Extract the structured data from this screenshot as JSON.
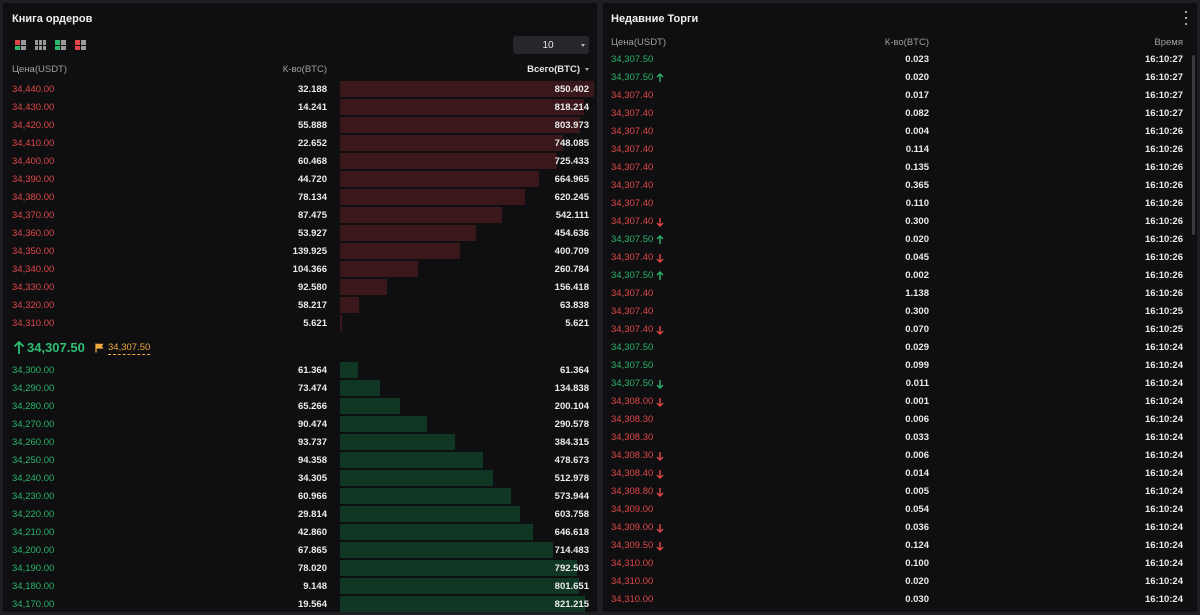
{
  "orderbook": {
    "title": "Книга ордеров",
    "depth_value": "10",
    "headers": {
      "price": "Цена(USDT)",
      "qty": "К-во(BTC)",
      "total": "Всего(BTC)"
    },
    "max_total": 850.402,
    "asks": [
      {
        "price": "34,440.00",
        "qty": "32.188",
        "total": "850.402",
        "total_num": 850.402
      },
      {
        "price": "34,430.00",
        "qty": "14.241",
        "total": "818.214",
        "total_num": 818.214
      },
      {
        "price": "34,420.00",
        "qty": "55.888",
        "total": "803.973",
        "total_num": 803.973
      },
      {
        "price": "34,410.00",
        "qty": "22.652",
        "total": "748.085",
        "total_num": 748.085
      },
      {
        "price": "34,400.00",
        "qty": "60.468",
        "total": "725.433",
        "total_num": 725.433
      },
      {
        "price": "34,390.00",
        "qty": "44.720",
        "total": "664.965",
        "total_num": 664.965
      },
      {
        "price": "34,380.00",
        "qty": "78.134",
        "total": "620.245",
        "total_num": 620.245
      },
      {
        "price": "34,370.00",
        "qty": "87.475",
        "total": "542.111",
        "total_num": 542.111
      },
      {
        "price": "34,360.00",
        "qty": "53.927",
        "total": "454.636",
        "total_num": 454.636
      },
      {
        "price": "34,350.00",
        "qty": "139.925",
        "total": "400.709",
        "total_num": 400.709
      },
      {
        "price": "34,340.00",
        "qty": "104.366",
        "total": "260.784",
        "total_num": 260.784
      },
      {
        "price": "34,330.00",
        "qty": "92.580",
        "total": "156.418",
        "total_num": 156.418
      },
      {
        "price": "34,320.00",
        "qty": "58.217",
        "total": "63.838",
        "total_num": 63.838
      },
      {
        "price": "34,310.00",
        "qty": "5.621",
        "total": "5.621",
        "total_num": 5.621
      }
    ],
    "last_price": "34,307.50",
    "mark_price": "34,307.50",
    "bids": [
      {
        "price": "34,300.00",
        "qty": "61.364",
        "total": "61.364",
        "total_num": 61.364
      },
      {
        "price": "34,290.00",
        "qty": "73.474",
        "total": "134.838",
        "total_num": 134.838
      },
      {
        "price": "34,280.00",
        "qty": "65.266",
        "total": "200.104",
        "total_num": 200.104
      },
      {
        "price": "34,270.00",
        "qty": "90.474",
        "total": "290.578",
        "total_num": 290.578
      },
      {
        "price": "34,260.00",
        "qty": "93.737",
        "total": "384.315",
        "total_num": 384.315
      },
      {
        "price": "34,250.00",
        "qty": "94.358",
        "total": "478.673",
        "total_num": 478.673
      },
      {
        "price": "34,240.00",
        "qty": "34.305",
        "total": "512.978",
        "total_num": 512.978
      },
      {
        "price": "34,230.00",
        "qty": "60.966",
        "total": "573.944",
        "total_num": 573.944
      },
      {
        "price": "34,220.00",
        "qty": "29.814",
        "total": "603.758",
        "total_num": 603.758
      },
      {
        "price": "34,210.00",
        "qty": "42.860",
        "total": "646.618",
        "total_num": 646.618
      },
      {
        "price": "34,200.00",
        "qty": "67.865",
        "total": "714.483",
        "total_num": 714.483
      },
      {
        "price": "34,190.00",
        "qty": "78.020",
        "total": "792.503",
        "total_num": 792.503
      },
      {
        "price": "34,180.00",
        "qty": "9.148",
        "total": "801.651",
        "total_num": 801.651
      },
      {
        "price": "34,170.00",
        "qty": "19.564",
        "total": "821.215",
        "total_num": 821.215
      }
    ]
  },
  "trades": {
    "title": "Недавние Торги",
    "headers": {
      "price": "Цена(USDT)",
      "qty": "К-во(BTC)",
      "time": "Время"
    },
    "rows": [
      {
        "price": "34,307.50",
        "side": "buy",
        "arrow": "",
        "qty": "0.023",
        "time": "16:10:27"
      },
      {
        "price": "34,307.50",
        "side": "buy",
        "arrow": "up",
        "qty": "0.020",
        "time": "16:10:27"
      },
      {
        "price": "34,307.40",
        "side": "sell",
        "arrow": "",
        "qty": "0.017",
        "time": "16:10:27"
      },
      {
        "price": "34,307.40",
        "side": "sell",
        "arrow": "",
        "qty": "0.082",
        "time": "16:10:27"
      },
      {
        "price": "34,307.40",
        "side": "sell",
        "arrow": "",
        "qty": "0.004",
        "time": "16:10:26"
      },
      {
        "price": "34,307.40",
        "side": "sell",
        "arrow": "",
        "qty": "0.114",
        "time": "16:10:26"
      },
      {
        "price": "34,307.40",
        "side": "sell",
        "arrow": "",
        "qty": "0.135",
        "time": "16:10:26"
      },
      {
        "price": "34,307.40",
        "side": "sell",
        "arrow": "",
        "qty": "0.365",
        "time": "16:10:26"
      },
      {
        "price": "34,307.40",
        "side": "sell",
        "arrow": "",
        "qty": "0.110",
        "time": "16:10:26"
      },
      {
        "price": "34,307.40",
        "side": "sell",
        "arrow": "down",
        "qty": "0.300",
        "time": "16:10:26"
      },
      {
        "price": "34,307.50",
        "side": "buy",
        "arrow": "up",
        "qty": "0.020",
        "time": "16:10:26"
      },
      {
        "price": "34,307.40",
        "side": "sell",
        "arrow": "down",
        "qty": "0.045",
        "time": "16:10:26"
      },
      {
        "price": "34,307.50",
        "side": "buy",
        "arrow": "up",
        "qty": "0.002",
        "time": "16:10:26"
      },
      {
        "price": "34,307.40",
        "side": "sell",
        "arrow": "",
        "qty": "1.138",
        "time": "16:10:26"
      },
      {
        "price": "34,307.40",
        "side": "sell",
        "arrow": "",
        "qty": "0.300",
        "time": "16:10:25"
      },
      {
        "price": "34,307.40",
        "side": "sell",
        "arrow": "down",
        "qty": "0.070",
        "time": "16:10:25"
      },
      {
        "price": "34,307.50",
        "side": "buy",
        "arrow": "",
        "qty": "0.029",
        "time": "16:10:24"
      },
      {
        "price": "34,307.50",
        "side": "buy",
        "arrow": "",
        "qty": "0.099",
        "time": "16:10:24"
      },
      {
        "price": "34,307.50",
        "side": "buy",
        "arrow": "down",
        "qty": "0.011",
        "time": "16:10:24"
      },
      {
        "price": "34,308.00",
        "side": "sell",
        "arrow": "down",
        "qty": "0.001",
        "time": "16:10:24"
      },
      {
        "price": "34,308.30",
        "side": "sell",
        "arrow": "",
        "qty": "0.006",
        "time": "16:10:24"
      },
      {
        "price": "34,308.30",
        "side": "sell",
        "arrow": "",
        "qty": "0.033",
        "time": "16:10:24"
      },
      {
        "price": "34,308.30",
        "side": "sell",
        "arrow": "down",
        "qty": "0.006",
        "time": "16:10:24"
      },
      {
        "price": "34,308.40",
        "side": "sell",
        "arrow": "down",
        "qty": "0.014",
        "time": "16:10:24"
      },
      {
        "price": "34,308.80",
        "side": "sell",
        "arrow": "down",
        "qty": "0.005",
        "time": "16:10:24"
      },
      {
        "price": "34,309.00",
        "side": "sell",
        "arrow": "",
        "qty": "0.054",
        "time": "16:10:24"
      },
      {
        "price": "34,309.00",
        "side": "sell",
        "arrow": "down",
        "qty": "0.036",
        "time": "16:10:24"
      },
      {
        "price": "34,309.50",
        "side": "sell",
        "arrow": "down",
        "qty": "0.124",
        "time": "16:10:24"
      },
      {
        "price": "34,310.00",
        "side": "sell",
        "arrow": "",
        "qty": "0.100",
        "time": "16:10:24"
      },
      {
        "price": "34,310.00",
        "side": "sell",
        "arrow": "",
        "qty": "0.020",
        "time": "16:10:24"
      },
      {
        "price": "34,310.00",
        "side": "sell",
        "arrow": "",
        "qty": "0.030",
        "time": "16:10:24"
      }
    ]
  },
  "colors": {
    "sell": "#e04848",
    "buy": "#2bb46a",
    "mark": "#f0a93c"
  }
}
